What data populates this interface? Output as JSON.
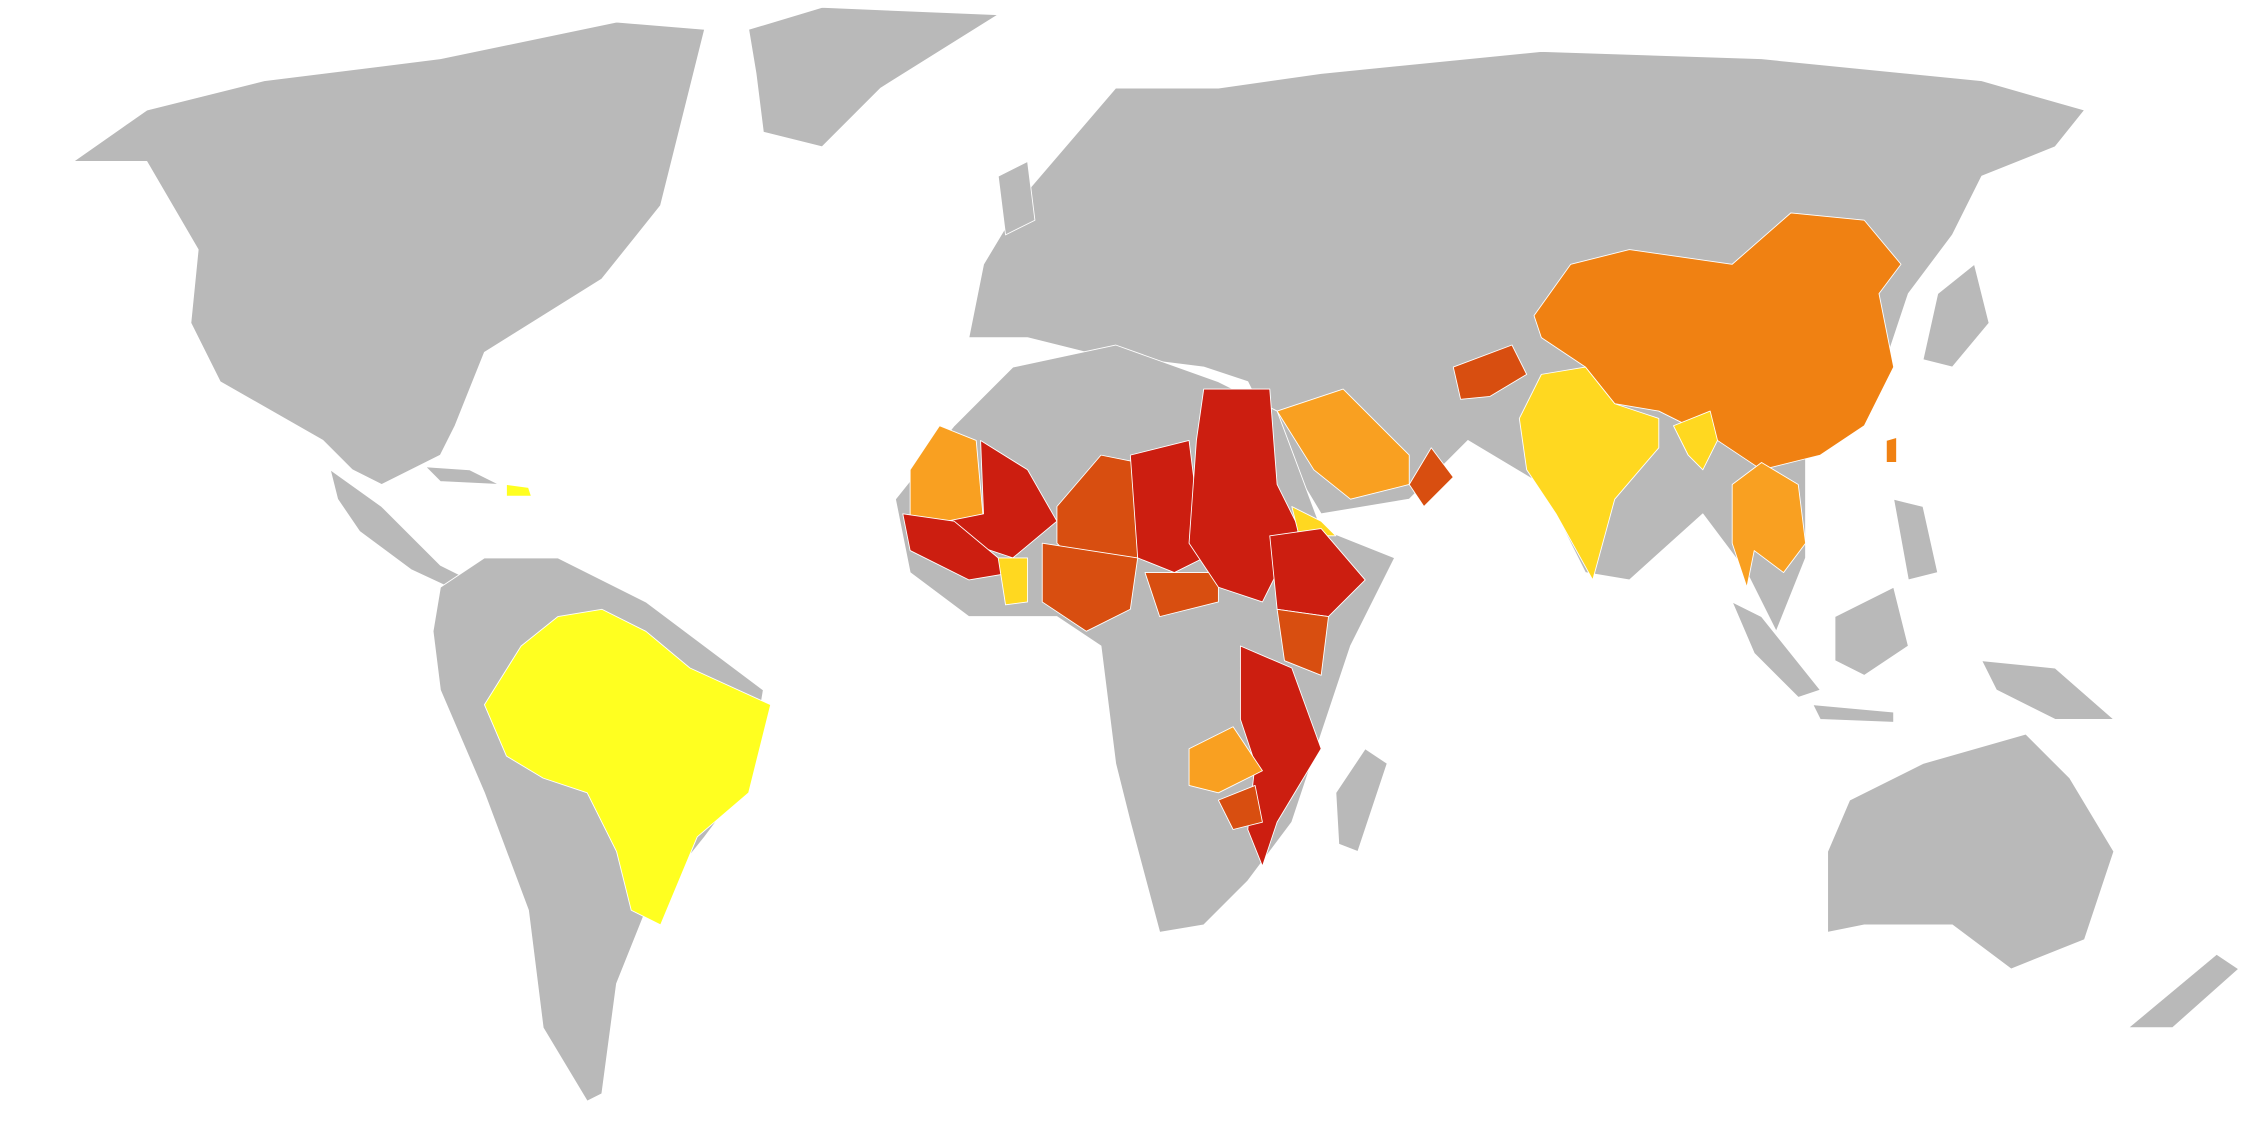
{
  "map": {
    "land_color": "#b9b9b9",
    "border_color": "#ffffff",
    "background": "#ffffff",
    "highlight_colors": [
      "#ffff20",
      "#ffd820",
      "#f9a021",
      "#f08112",
      "#d84e10",
      "#cc1e10"
    ]
  }
}
